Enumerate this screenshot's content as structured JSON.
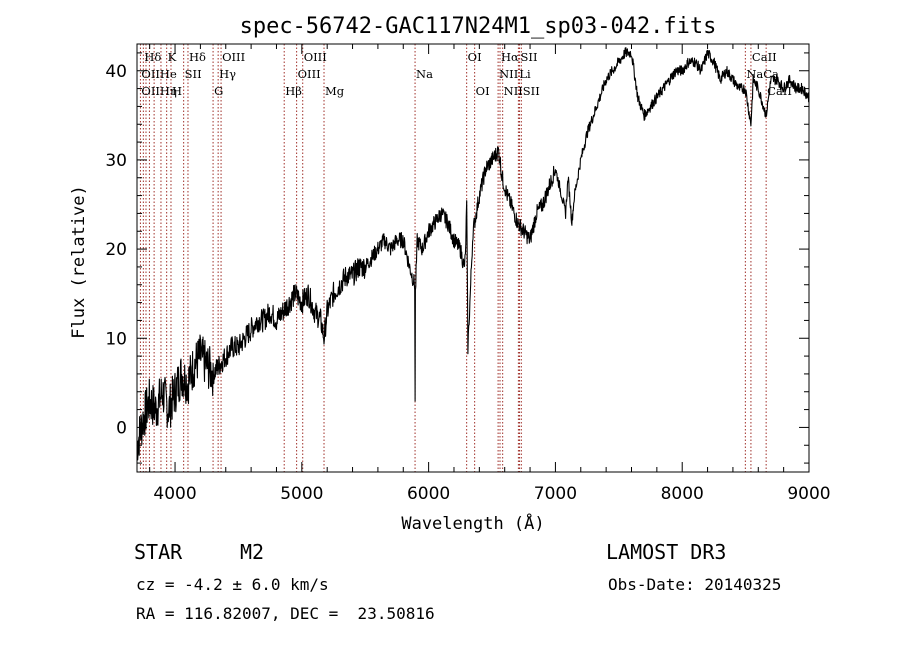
{
  "chart_data": {
    "type": "line",
    "title": "spec-56742-GAC117N24M1_sp03-042.fits",
    "xlabel": "Wavelength (Å)",
    "ylabel": "Flux (relative)",
    "xlim": [
      3700,
      9000
    ],
    "ylim": [
      -5,
      43
    ],
    "xticks": [
      4000,
      5000,
      6000,
      7000,
      8000,
      9000
    ],
    "yticks": [
      0,
      10,
      20,
      30,
      40
    ],
    "x_minor_step": 200,
    "y_minor_step": 2,
    "series": [
      {
        "name": "flux",
        "x": [
          3700,
          3750,
          3800,
          3850,
          3900,
          3950,
          4000,
          4050,
          4100,
          4150,
          4200,
          4250,
          4300,
          4350,
          4400,
          4450,
          4500,
          4550,
          4600,
          4650,
          4700,
          4750,
          4800,
          4850,
          4900,
          4950,
          5000,
          5050,
          5100,
          5150,
          5175,
          5200,
          5250,
          5300,
          5350,
          5400,
          5450,
          5500,
          5550,
          5600,
          5650,
          5700,
          5750,
          5800,
          5850,
          5890,
          5893,
          5896,
          5910,
          5950,
          6000,
          6050,
          6100,
          6150,
          6200,
          6250,
          6280,
          6290,
          6300,
          6310,
          6350,
          6400,
          6450,
          6500,
          6550,
          6563,
          6580,
          6620,
          6650,
          6700,
          6750,
          6800,
          6850,
          6900,
          6950,
          7000,
          7050,
          7080,
          7100,
          7130,
          7150,
          7200,
          7250,
          7300,
          7350,
          7400,
          7450,
          7500,
          7550,
          7600,
          7650,
          7700,
          7750,
          7800,
          7850,
          7900,
          7950,
          8000,
          8050,
          8100,
          8150,
          8200,
          8250,
          8300,
          8350,
          8400,
          8450,
          8498,
          8542,
          8560,
          8600,
          8662,
          8700,
          8750,
          8800,
          8850,
          8900,
          8950,
          9000
        ],
        "y": [
          -2,
          1,
          3,
          2,
          4,
          2,
          4,
          6,
          5,
          7,
          8,
          7,
          6,
          7,
          8,
          9,
          9,
          10,
          11,
          12,
          12,
          13,
          12,
          13,
          14,
          15,
          14,
          15,
          13,
          12,
          10,
          13,
          15,
          16,
          17,
          17,
          18,
          18,
          19,
          20,
          21,
          20,
          21,
          21,
          18,
          16,
          3,
          15,
          21,
          20,
          22,
          23,
          24,
          23,
          21,
          20,
          18,
          19,
          25,
          9,
          22,
          26,
          29,
          30,
          31,
          30,
          28,
          26,
          25,
          23,
          22,
          21,
          24,
          25,
          27,
          29,
          26,
          24,
          28,
          23,
          26,
          30,
          33,
          35,
          37,
          39,
          40,
          41,
          42,
          42,
          37,
          35,
          36,
          37,
          38,
          39,
          40,
          40,
          41,
          41,
          40,
          42,
          41,
          39,
          40,
          39,
          38,
          38,
          34,
          39,
          38,
          35,
          39,
          39,
          38,
          39,
          38,
          38,
          37
        ]
      }
    ],
    "spectral_lines": [
      {
        "label": "Hδ",
        "wavelength": 3750,
        "row": 0
      },
      {
        "label": "K",
        "wavelength": 3934,
        "row": 0
      },
      {
        "label": "Hδ",
        "wavelength": 4102,
        "row": 0
      },
      {
        "label": "OIII",
        "wavelength": 4363,
        "row": 0
      },
      {
        "label": "OIII",
        "wavelength": 5007,
        "row": 0
      },
      {
        "label": "OI",
        "wavelength": 6300,
        "row": 0
      },
      {
        "label": "Hα",
        "wavelength": 6563,
        "row": 0
      },
      {
        "label": "SII",
        "wavelength": 6717,
        "row": 0
      },
      {
        "label": "CaII",
        "wavelength": 8542,
        "row": 0
      },
      {
        "label": "OIIHe",
        "wavelength": 3727,
        "row": 1
      },
      {
        "label": "SII",
        "wavelength": 4068,
        "row": 1
      },
      {
        "label": "Hγ",
        "wavelength": 4340,
        "row": 1
      },
      {
        "label": "OIII",
        "wavelength": 4959,
        "row": 1
      },
      {
        "label": "Na",
        "wavelength": 5893,
        "row": 1
      },
      {
        "label": "NII",
        "wavelength": 6548,
        "row": 1
      },
      {
        "label": "Li",
        "wavelength": 6708,
        "row": 1
      },
      {
        "label": "NaCa",
        "wavelength": 8498,
        "row": 1
      },
      {
        "label": "OIIHη",
        "wavelength": 3727,
        "row": 2
      },
      {
        "label": "H",
        "wavelength": 3968,
        "row": 2
      },
      {
        "label": "G",
        "wavelength": 4300,
        "row": 2
      },
      {
        "label": "Hβ",
        "wavelength": 4861,
        "row": 2
      },
      {
        "label": "Mg",
        "wavelength": 5175,
        "row": 2
      },
      {
        "label": "OI",
        "wavelength": 6363,
        "row": 2
      },
      {
        "label": "NIISII",
        "wavelength": 6584,
        "row": 2
      },
      {
        "label": "CaII",
        "wavelength": 8662,
        "row": 2
      }
    ],
    "line_marker_wavelengths": [
      3727,
      3750,
      3771,
      3798,
      3835,
      3889,
      3934,
      3968,
      4068,
      4102,
      4300,
      4340,
      4363,
      4861,
      4959,
      5007,
      5175,
      5893,
      6300,
      6363,
      6548,
      6563,
      6584,
      6708,
      6717,
      6731,
      8498,
      8542,
      8662
    ]
  },
  "info": {
    "object_class": "STAR",
    "subclass": "M2",
    "survey": "LAMOST DR3",
    "cz": "cz = -4.2 ± 6.0 km/s",
    "obs_date": "Obs-Date: 20140325",
    "coords": "RA = 116.82007, DEC =  23.50816"
  },
  "colors": {
    "spectrum": "#000000",
    "marker": "#a0302a",
    "axes": "#000000"
  }
}
